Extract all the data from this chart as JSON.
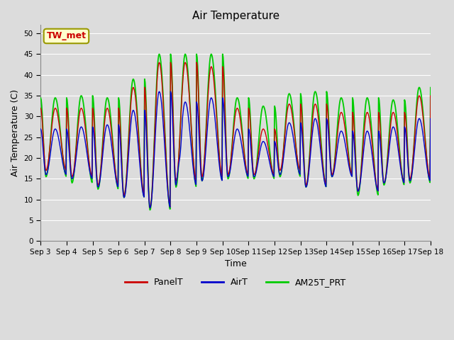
{
  "title": "Air Temperature",
  "xlabel": "Time",
  "ylabel": "Air Temperature (C)",
  "ylim": [
    0,
    52
  ],
  "yticks": [
    0,
    5,
    10,
    15,
    20,
    25,
    30,
    35,
    40,
    45,
    50
  ],
  "bg_color": "#dcdcdc",
  "plot_bg_color": "#dcdcdc",
  "grid_color": "#ffffff",
  "annotation_text": "TW_met",
  "annotation_bg": "#ffffcc",
  "annotation_border": "#999900",
  "annotation_text_color": "#cc0000",
  "series": {
    "PanelT": {
      "color": "#cc0000",
      "lw": 1.0
    },
    "AirT": {
      "color": "#0000cc",
      "lw": 1.0
    },
    "AM25T_PRT": {
      "color": "#00cc00",
      "lw": 1.3
    }
  },
  "x_day_labels": [
    "Sep 3",
    "Sep 4",
    "Sep 5",
    "Sep 6",
    "Sep 7",
    "Sep 8",
    "Sep 9",
    "Sep 10",
    "Sep 11",
    "Sep 12",
    "Sep 13",
    "Sep 14",
    "Sep 15",
    "Sep 16",
    "Sep 17",
    "Sep 18"
  ],
  "x_day_positions": [
    3,
    4,
    5,
    6,
    7,
    8,
    9,
    10,
    11,
    12,
    13,
    14,
    15,
    16,
    17,
    18
  ]
}
